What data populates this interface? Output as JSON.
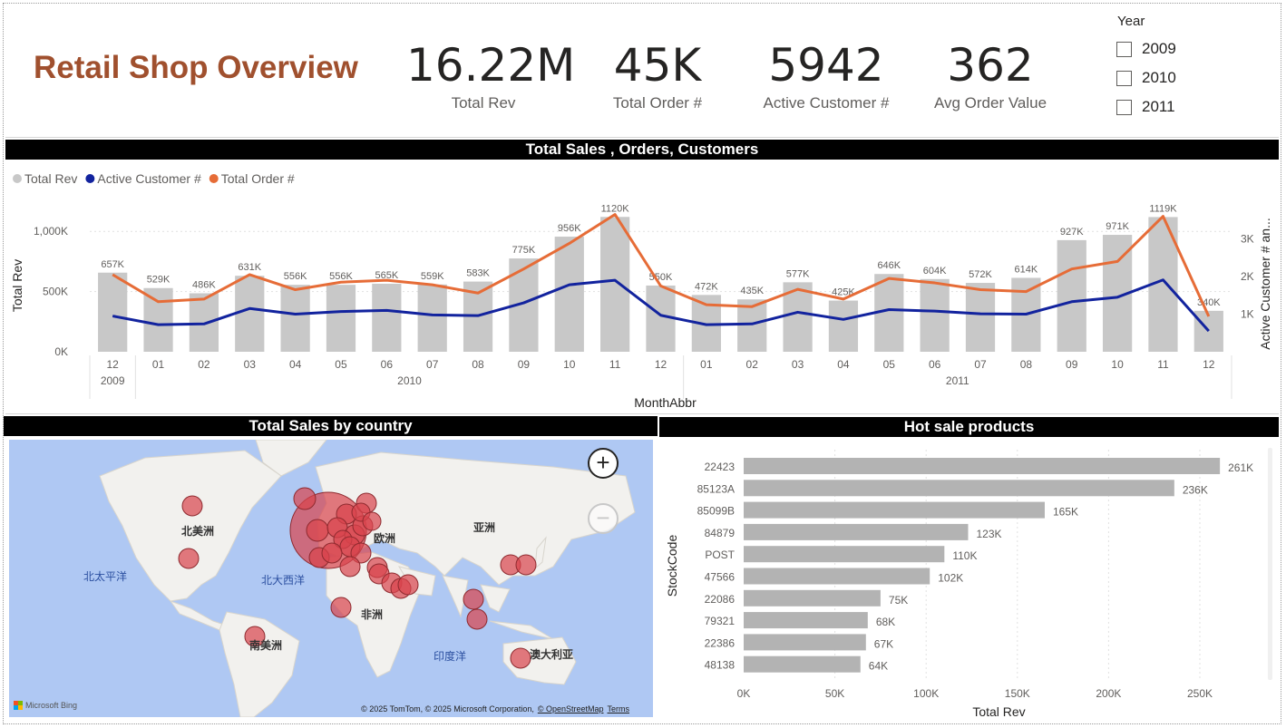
{
  "header": {
    "title": "Retail Shop Overview"
  },
  "kpis": [
    {
      "value": "16.22M",
      "label": "Total Rev"
    },
    {
      "value": "45K",
      "label": "Total Order #"
    },
    {
      "value": "5942",
      "label": "Active Customer #"
    },
    {
      "value": "362",
      "label": "Avg Order Value"
    }
  ],
  "year_slicer": {
    "title": "Year",
    "options": [
      "2009",
      "2010",
      "2011"
    ]
  },
  "sales_panel": {
    "title": "Total Sales , Orders, Customers"
  },
  "map_panel": {
    "title": "Total Sales by country",
    "labels": {
      "north_america": "北美洲",
      "south_america": "南美洲",
      "europe_partial": "欧洲",
      "asia": "亚洲",
      "africa": "非洲",
      "oceania": "澳大利亚",
      "north_pacific": "北太平洋",
      "north_atlantic": "北大西洋",
      "indian_ocean": "印度洋"
    },
    "zoom_in": "+",
    "zoom_out": "−",
    "attribution": "© 2025 TomTom, © 2025 Microsoft Corporation,",
    "osm": "© OpenStreetMap",
    "terms": "Terms",
    "bing": "Microsoft Bing",
    "bubble_color": "#D9434B"
  },
  "products_panel": {
    "title": "Hot sale products"
  },
  "chart_data": [
    {
      "type": "bar+line",
      "legend": [
        "Total Rev",
        "Active Customer #",
        "Total Order #"
      ],
      "legend_placement": "top-left",
      "colors": {
        "Total Rev": "#C8C8C8",
        "Active Customer #": "#12239E",
        "Total Order #": "#E66C37"
      },
      "categories": [
        "12",
        "01",
        "02",
        "03",
        "04",
        "05",
        "06",
        "07",
        "08",
        "09",
        "10",
        "11",
        "12",
        "01",
        "02",
        "03",
        "04",
        "05",
        "06",
        "07",
        "08",
        "09",
        "10",
        "11",
        "12"
      ],
      "years": [
        {
          "label": "2009",
          "span": 1
        },
        {
          "label": "2010",
          "span": 12
        },
        {
          "label": "2011",
          "span": 12
        }
      ],
      "bars": {
        "name": "Total Rev",
        "values": [
          657,
          529,
          486,
          631,
          556,
          556,
          565,
          559,
          583,
          775,
          956,
          1120,
          550,
          472,
          435,
          577,
          425,
          646,
          604,
          572,
          614,
          927,
          971,
          1119,
          340
        ],
        "labels": [
          "657K",
          "529K",
          "486K",
          "631K",
          "556K",
          "556K",
          "565K",
          "559K",
          "583K",
          "775K",
          "956K",
          "1120K",
          "550K",
          "472K",
          "435K",
          "577K",
          "425K",
          "646K",
          "604K",
          "572K",
          "614K",
          "927K",
          "971K",
          "1119K",
          "340K"
        ]
      },
      "lines": [
        {
          "name": "Active Customer #",
          "values": [
            950,
            720,
            740,
            1150,
            1000,
            1070,
            1100,
            980,
            960,
            1300,
            1780,
            1900,
            970,
            720,
            740,
            1050,
            860,
            1120,
            1080,
            1010,
            1000,
            1330,
            1450,
            1910,
            550
          ]
        },
        {
          "name": "Total Order #",
          "values": [
            2050,
            1330,
            1400,
            2050,
            1650,
            1850,
            1900,
            1780,
            1560,
            2200,
            2880,
            3650,
            1750,
            1250,
            1200,
            1660,
            1400,
            1950,
            1830,
            1650,
            1600,
            2200,
            2400,
            3600,
            940
          ]
        }
      ],
      "y_left": {
        "label": "Total Rev",
        "ticks": [
          "0K",
          "500K",
          "1,000K"
        ],
        "max": 1250
      },
      "y_right": {
        "label": "Active Customer # an...",
        "ticks": [
          "1K",
          "2K",
          "3K"
        ],
        "max": 4000
      },
      "xlabel": "MonthAbbr"
    },
    {
      "type": "bar",
      "orientation": "horizontal",
      "categories": [
        "22423",
        "85123A",
        "85099B",
        "84879",
        "POST",
        "47566",
        "22086",
        "79321",
        "22386",
        "48138"
      ],
      "values": [
        261,
        236,
        165,
        123,
        110,
        102,
        75,
        68,
        67,
        64
      ],
      "labels": [
        "261K",
        "236K",
        "165K",
        "123K",
        "110K",
        "102K",
        "75K",
        "68K",
        "67K",
        "64K"
      ],
      "xlabel": "Total Rev",
      "ylabel": "StockCode",
      "x_ticks": [
        "0K",
        "50K",
        "100K",
        "150K",
        "200K",
        "250K"
      ],
      "xlim": [
        0,
        250
      ],
      "color": "#B3B3B3"
    }
  ]
}
